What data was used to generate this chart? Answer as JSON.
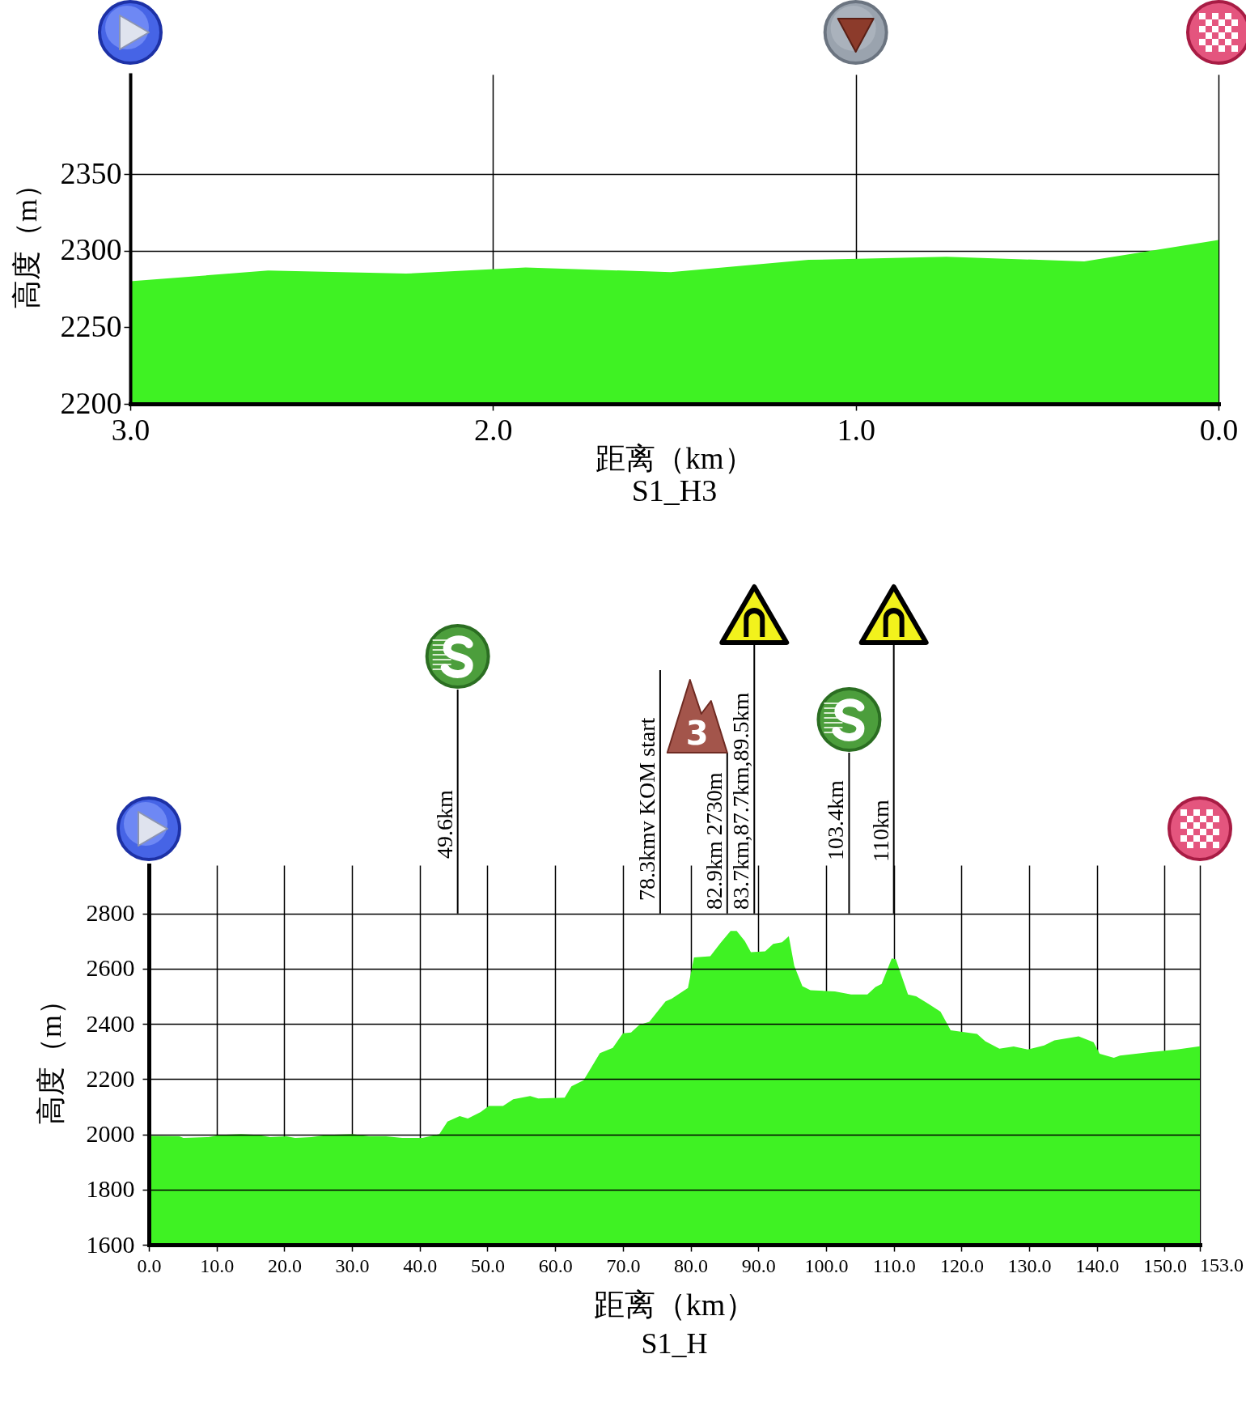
{
  "chart_data": [
    {
      "type": "area",
      "title": "S1_H3",
      "xlabel": "距离（km）",
      "ylabel": "高度（m）",
      "color": "#3ff223",
      "x": [
        3,
        2.62,
        2.24,
        1.91,
        1.51,
        1.13,
        0.75,
        0.37,
        0
      ],
      "values": [
        2280,
        2287,
        2285,
        2289,
        2286,
        2294,
        2296,
        2293,
        2307
      ],
      "xlim": [
        3,
        0
      ],
      "xticks": [
        {
          "value": 3,
          "label": "3.0"
        },
        {
          "value": 2,
          "label": "2.0"
        },
        {
          "value": 1,
          "label": "1.0"
        },
        {
          "value": 0,
          "label": "0.0"
        }
      ],
      "ylim": [
        2200,
        2415
      ],
      "yticks": [
        2200,
        2250,
        2300,
        2350
      ],
      "grid": true
    },
    {
      "type": "area",
      "title": "S1_H",
      "xlabel": "距离（km）",
      "ylabel": "高度（m）",
      "color": "#3ff223",
      "x": [
        0,
        4.5,
        5.1,
        8.8,
        10.6,
        13.6,
        16.1,
        17.9,
        20.3,
        21.6,
        24,
        26.4,
        30.1,
        32.5,
        35,
        37.4,
        40.4,
        42.9,
        44.1,
        45.9,
        47.1,
        49,
        50.2,
        52.3,
        53.8,
        56.3,
        57.5,
        61.4,
        62.4,
        64.2,
        66.6,
        68.5,
        70,
        71.2,
        72.4,
        73.9,
        76.3,
        77.2,
        79.6,
        80.5,
        82.9,
        84.4,
        85.9,
        86.8,
        88,
        88.9,
        91,
        92.2,
        93.5,
        94.5,
        95.3,
        96.5,
        97.7,
        101.3,
        103.7,
        106.1,
        107.3,
        108.2,
        109.7,
        110.3,
        112.1,
        113.3,
        115.1,
        116.9,
        117.8,
        118.4,
        122.3,
        123.5,
        125.6,
        127.7,
        129.8,
        132.2,
        133.7,
        137.3,
        139.5,
        140.4,
        142.5,
        143.4,
        147.6,
        151.8,
        155.2
      ],
      "values": [
        1994,
        1993,
        1987,
        1990,
        1998,
        2001,
        1998,
        1990,
        1993,
        1987,
        1990,
        1998,
        2001,
        1993,
        1993,
        1987,
        1987,
        2001,
        2046,
        2066,
        2057,
        2081,
        2103,
        2103,
        2127,
        2139,
        2130,
        2133,
        2174,
        2196,
        2294,
        2313,
        2366,
        2369,
        2396,
        2408,
        2482,
        2491,
        2530,
        2641,
        2645,
        2693,
        2737,
        2737,
        2700,
        2660,
        2663,
        2690,
        2696,
        2718,
        2611,
        2537,
        2522,
        2518,
        2507,
        2507,
        2534,
        2545,
        2637,
        2634,
        2507,
        2500,
        2473,
        2444,
        2404,
        2377,
        2364,
        2337,
        2310,
        2318,
        2307,
        2322,
        2340,
        2355,
        2334,
        2292,
        2277,
        2285,
        2297,
        2307,
        2319
      ],
      "xlim": [
        0,
        155.2
      ],
      "xticks": [
        {
          "value": 0,
          "label": "0.0"
        },
        {
          "value": 10,
          "label": "10.0"
        },
        {
          "value": 20,
          "label": "20.0"
        },
        {
          "value": 30,
          "label": "30.0"
        },
        {
          "value": 40,
          "label": "40.0"
        },
        {
          "value": 50,
          "label": "50.0"
        },
        {
          "value": 60,
          "label": "60.0"
        },
        {
          "value": 70,
          "label": "70.0"
        },
        {
          "value": 80,
          "label": "80.0"
        },
        {
          "value": 90,
          "label": "90.0"
        },
        {
          "value": 100,
          "label": "100.0"
        },
        {
          "value": 110,
          "label": "110.0"
        },
        {
          "value": 120,
          "label": "120.0"
        },
        {
          "value": 130,
          "label": "130.0"
        },
        {
          "value": 140,
          "label": "140.0"
        },
        {
          "value": 150,
          "label": "150.0"
        },
        {
          "value": 155.2,
          "label": null
        }
      ],
      "ylim": [
        1600,
        2975
      ],
      "yticks": [
        1600,
        1800,
        2000,
        2200,
        2400,
        2600,
        2800
      ],
      "grid": true,
      "ref_lines": [
        {
          "axis": "x",
          "value": 45.6,
          "label": "49.6km"
        },
        {
          "axis": "x",
          "value": 75.5,
          "label": "78.3kmv KOM start"
        },
        {
          "axis": "x",
          "value": 85.4,
          "label": "82.9km 2730m"
        },
        {
          "axis": "x",
          "value": 89.4,
          "label": "83.7km,87.7km,89.5km"
        },
        {
          "axis": "x",
          "value": 103.4,
          "label": "103.4km"
        },
        {
          "axis": "x",
          "value": 110,
          "label": "110km"
        }
      ],
      "annotations": [
        "153.0",
        "3"
      ]
    }
  ]
}
